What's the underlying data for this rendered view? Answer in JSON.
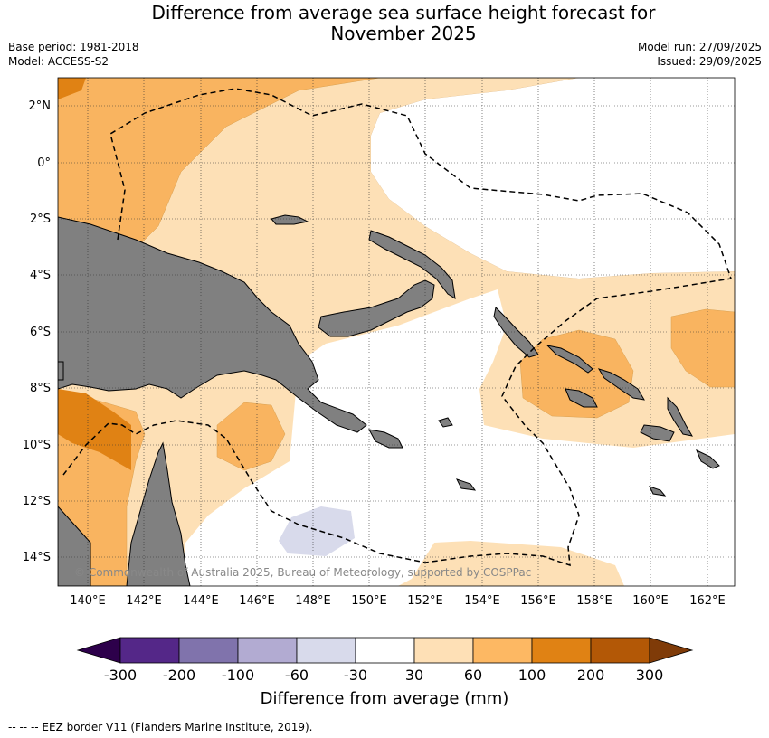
{
  "header": {
    "title_line1": "Difference from average sea surface height forecast for",
    "title_line2": "November 2025",
    "base_period": "Base period: 1981-2018",
    "model": "Model: ACCESS-S2",
    "model_run": "Model run: 27/09/2025",
    "issued": "Issued: 29/09/2025"
  },
  "map": {
    "lat_labels": [
      "2°N",
      "0°",
      "2°S",
      "4°S",
      "6°S",
      "8°S",
      "10°S",
      "12°S",
      "14°S"
    ],
    "lon_labels": [
      "140°E",
      "142°E",
      "144°E",
      "146°E",
      "148°E",
      "150°E",
      "152°E",
      "154°E",
      "156°E",
      "158°E",
      "160°E",
      "162°E"
    ],
    "copyright": "© Commonwealth of Australia 2025, Bureau of Meteorology, supported by COSPPac",
    "colors": {
      "land": "#808080",
      "c30_60": "#fde0b6",
      "c60_100": "#f9b460",
      "c100_200": "#e08214",
      "cm60_m30": "#d8daeb"
    }
  },
  "colorbar": {
    "labels": [
      "-300",
      "-200",
      "-100",
      "-60",
      "-30",
      "30",
      "60",
      "100",
      "200",
      "300"
    ],
    "colors": [
      "#2d004b",
      "#542788",
      "#8073ac",
      "#b2abd2",
      "#d8daeb",
      "#ffffff",
      "#fee0b6",
      "#fdb863",
      "#e08214",
      "#b35806",
      "#7f3b08"
    ],
    "title": "Difference from average (mm)"
  },
  "footnote": "--  --  -- EEZ border V11 (Flanders Marine Institute, 2019)."
}
